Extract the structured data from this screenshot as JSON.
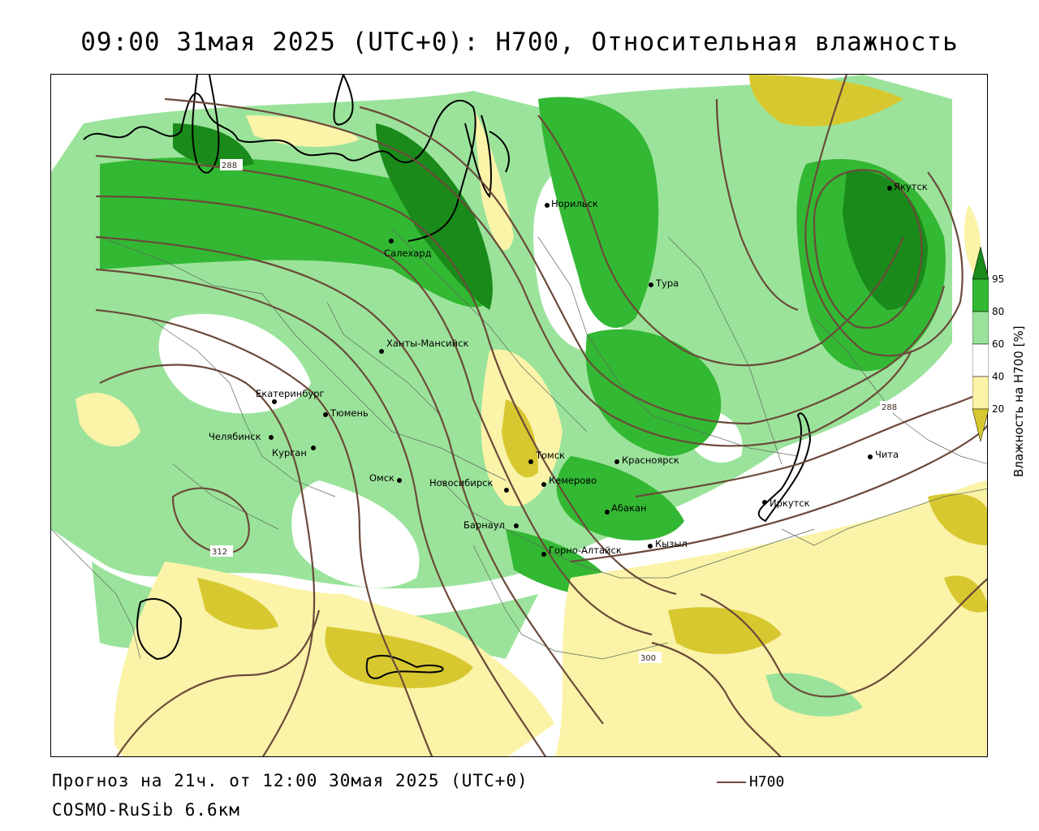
{
  "title": "09:00 31мая 2025 (UTC+0): H700, Относительная влажность",
  "footer": {
    "forecast": "Прогноз на 21ч. от 12:00 30мая 2025 (UTC+0)",
    "model": "COSMO-RuSib 6.6км"
  },
  "legend": {
    "line_label": "H700",
    "line_color": "#6b4a3a"
  },
  "colorbar": {
    "title": "Влажность на H700 [%]",
    "ticks": [
      "95",
      "80",
      "60",
      "40",
      "20"
    ],
    "colors": {
      "above95": "#1a8a1a",
      "80_95": "#33b833",
      "60_80": "#9be39b",
      "40_60": "#ffffff",
      "20_40": "#fbf3a8",
      "below20": "#d8c830"
    }
  },
  "contour_labels": [
    "288",
    "288",
    "312",
    "300"
  ],
  "cities": [
    {
      "name": "Норильск"
    },
    {
      "name": "Якутск"
    },
    {
      "name": "Салехард"
    },
    {
      "name": "Тура"
    },
    {
      "name": "Ханты-Мансийск"
    },
    {
      "name": "Екатеринбург"
    },
    {
      "name": "Тюмень"
    },
    {
      "name": "Челябинск"
    },
    {
      "name": "Курган"
    },
    {
      "name": "Омск"
    },
    {
      "name": "Новосибирск"
    },
    {
      "name": "Томск"
    },
    {
      "name": "Кемерово"
    },
    {
      "name": "Красноярск"
    },
    {
      "name": "Барнаул"
    },
    {
      "name": "Абакан"
    },
    {
      "name": "Горно-Алтайск"
    },
    {
      "name": "Кызыл"
    },
    {
      "name": "Иркутск"
    },
    {
      "name": "Чита"
    }
  ]
}
